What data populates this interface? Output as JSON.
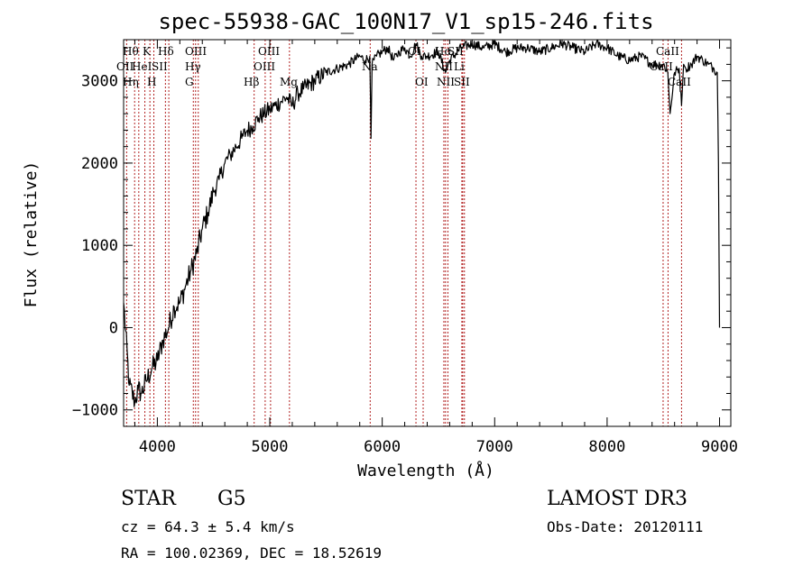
{
  "chart_data": {
    "type": "line",
    "title": "spec-55938-GAC_100N17_V1_sp15-246.fits",
    "xlabel": "Wavelength (Å)",
    "ylabel": "Flux (relative)",
    "xlim": [
      3700,
      9100
    ],
    "ylim": [
      -1200,
      3500
    ],
    "x_ticks": [
      4000,
      5000,
      6000,
      7000,
      8000,
      9000
    ],
    "y_ticks": [
      -1000,
      0,
      1000,
      2000,
      3000
    ],
    "x_tick_labels": [
      "4000",
      "5000",
      "6000",
      "7000",
      "8000",
      "9000"
    ],
    "y_tick_labels": [
      "−1000",
      "0",
      "1000",
      "2000",
      "3000"
    ],
    "series": [
      {
        "name": "spectrum",
        "x": [
          3700,
          3750,
          3800,
          3830,
          3860,
          3900,
          3950,
          4000,
          4050,
          4100,
          4150,
          4200,
          4250,
          4300,
          4350,
          4400,
          4450,
          4500,
          4550,
          4600,
          4650,
          4700,
          4750,
          4800,
          4850,
          4900,
          4950,
          5000,
          5050,
          5100,
          5150,
          5200,
          5250,
          5300,
          5400,
          5500,
          5600,
          5700,
          5800,
          5850,
          5890,
          5900,
          5910,
          5950,
          6000,
          6050,
          6100,
          6150,
          6200,
          6250,
          6300,
          6350,
          6400,
          6500,
          6563,
          6600,
          6700,
          6800,
          6900,
          7000,
          7100,
          7200,
          7300,
          7400,
          7500,
          7600,
          7700,
          7800,
          7900,
          8000,
          8100,
          8200,
          8300,
          8400,
          8500,
          8540,
          8560,
          8600,
          8640,
          8662,
          8680,
          8700,
          8750,
          8800,
          8850,
          8900,
          8950,
          8980,
          8990,
          9000
        ],
        "y": [
          300,
          -700,
          -900,
          -750,
          -800,
          -650,
          -500,
          -400,
          -150,
          0,
          250,
          300,
          500,
          700,
          900,
          1200,
          1400,
          1650,
          1800,
          2000,
          2100,
          2200,
          2300,
          2400,
          2450,
          2550,
          2600,
          2650,
          2700,
          2750,
          2800,
          2700,
          2850,
          2900,
          3000,
          3100,
          3150,
          3200,
          3300,
          3250,
          3300,
          2300,
          3200,
          3300,
          3350,
          3400,
          3250,
          3350,
          3400,
          3300,
          3450,
          3300,
          3300,
          3350,
          3100,
          3250,
          3400,
          3450,
          3400,
          3450,
          3350,
          3400,
          3400,
          3350,
          3400,
          3450,
          3400,
          3350,
          3450,
          3400,
          3300,
          3250,
          3300,
          3200,
          3200,
          3100,
          2600,
          3100,
          3150,
          2700,
          3200,
          3150,
          3200,
          3300,
          3250,
          3200,
          3150,
          3100,
          2000,
          0
        ]
      }
    ],
    "lines": [
      {
        "name": "Hθ",
        "x": 3798
      },
      {
        "name": "OII",
        "x": 3727
      },
      {
        "name": "Hη",
        "x": 3835
      },
      {
        "name": "HeI",
        "x": 3889
      },
      {
        "name": "K",
        "x": 3934
      },
      {
        "name": "H",
        "x": 3969
      },
      {
        "name": "SII",
        "x": 4072
      },
      {
        "name": "Hδ",
        "x": 4102
      },
      {
        "name": "OIII",
        "x": 4320
      },
      {
        "name": "Hγ",
        "x": 4340
      },
      {
        "name": "G",
        "x": 4364
      },
      {
        "name": "Hβ",
        "x": 4861
      },
      {
        "name": "OIII",
        "x": 4959
      },
      {
        "name": "OIII",
        "x": 5007
      },
      {
        "name": "Mg",
        "x": 5175
      },
      {
        "name": "Na",
        "x": 5893
      },
      {
        "name": "OI",
        "x": 6300
      },
      {
        "name": "OI",
        "x": 6364
      },
      {
        "name": "NII",
        "x": 6548
      },
      {
        "name": "Hα",
        "x": 6563
      },
      {
        "name": "NII",
        "x": 6584
      },
      {
        "name": "SII",
        "x": 6716
      },
      {
        "name": "Li",
        "x": 6708
      },
      {
        "name": "SII",
        "x": 6731
      },
      {
        "name": "CaII",
        "x": 8498
      },
      {
        "name": "CaII",
        "x": 8542
      },
      {
        "name": "CaII",
        "x": 8662
      }
    ]
  },
  "line_labels": {
    "htheta": "Hθ",
    "oii": "OII",
    "heta": "Hη",
    "hei": "HeI",
    "k": "K",
    "h": "H",
    "sii_4072": "SII",
    "hdelta": "Hδ",
    "oiii_4320": "OIII",
    "hgamma": "Hγ",
    "g": "G",
    "hbeta": "Hβ",
    "oiii_4959": "OIII",
    "oiii_5007": "OIII",
    "mg": "Mg",
    "na": "Na",
    "oi_6300": "OI",
    "oi_6364": "OI",
    "ha": "Hα",
    "sii_6716": "SII",
    "nii_6548": "NII",
    "li": "Li",
    "nii_6584": "NII",
    "sii_6731": "SII",
    "caii_8498": "CaII",
    "caii_8542": "CaII",
    "caii_8662": "CaII"
  },
  "info": {
    "class": "STAR",
    "subclass": "G5",
    "survey": "LAMOST DR3",
    "cz": "cz = 64.3 ± 5.4 km/s",
    "obs_date": "Obs-Date: 20120111",
    "radec": "RA = 100.02369, DEC =  18.52619"
  }
}
